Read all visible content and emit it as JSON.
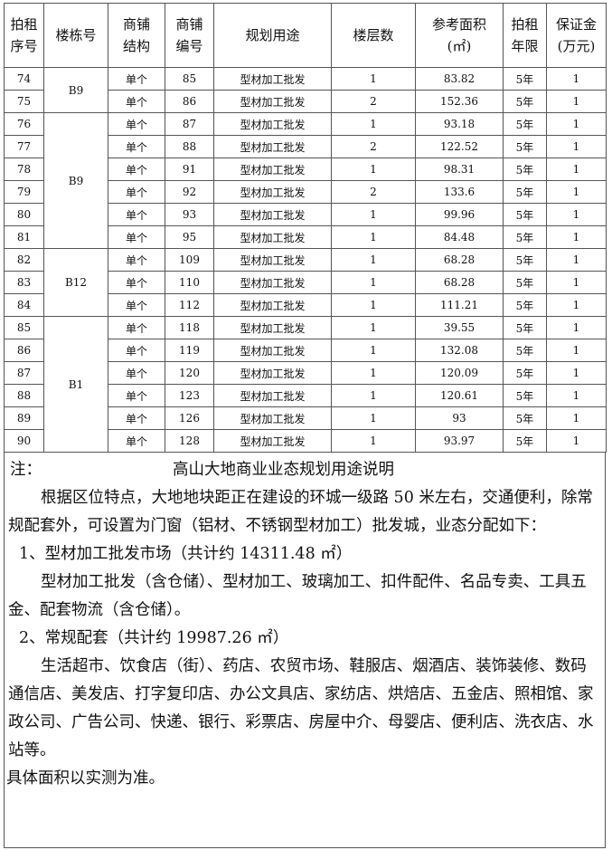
{
  "table": {
    "headers": [
      "拍租\n序号",
      "楼栋号",
      "商铺\n结构",
      "商铺\n编号",
      "规划用途",
      "楼层数",
      "参考面积\n(㎡)",
      "拍租\n年限",
      "保证金\n(万元)"
    ],
    "groups": [
      {
        "building": "B9",
        "rows": [
          {
            "no": "74",
            "structure": "单个",
            "shop": "85",
            "use": "型材加工批发",
            "floors": "1",
            "area": "83.82",
            "term": "5年",
            "deposit": "1"
          },
          {
            "no": "75",
            "structure": "单个",
            "shop": "86",
            "use": "型材加工批发",
            "floors": "2",
            "area": "152.36",
            "term": "5年",
            "deposit": "1"
          }
        ]
      },
      {
        "building": "B9",
        "rows": [
          {
            "no": "76",
            "structure": "单个",
            "shop": "87",
            "use": "型材加工批发",
            "floors": "1",
            "area": "93.18",
            "term": "5年",
            "deposit": "1"
          },
          {
            "no": "77",
            "structure": "单个",
            "shop": "88",
            "use": "型材加工批发",
            "floors": "2",
            "area": "122.52",
            "term": "5年",
            "deposit": "1"
          },
          {
            "no": "78",
            "structure": "单个",
            "shop": "91",
            "use": "型材加工批发",
            "floors": "1",
            "area": "98.31",
            "term": "5年",
            "deposit": "1"
          },
          {
            "no": "79",
            "structure": "单个",
            "shop": "92",
            "use": "型材加工批发",
            "floors": "2",
            "area": "133.6",
            "term": "5年",
            "deposit": "1"
          },
          {
            "no": "80",
            "structure": "单个",
            "shop": "93",
            "use": "型材加工批发",
            "floors": "1",
            "area": "99.96",
            "term": "5年",
            "deposit": "1"
          },
          {
            "no": "81",
            "structure": "单个",
            "shop": "95",
            "use": "型材加工批发",
            "floors": "1",
            "area": "84.48",
            "term": "5年",
            "deposit": "1"
          }
        ]
      },
      {
        "building": "B12",
        "rows": [
          {
            "no": "82",
            "structure": "单个",
            "shop": "109",
            "use": "型材加工批发",
            "floors": "1",
            "area": "68.28",
            "term": "5年",
            "deposit": "1"
          },
          {
            "no": "83",
            "structure": "单个",
            "shop": "110",
            "use": "型材加工批发",
            "floors": "1",
            "area": "68.28",
            "term": "5年",
            "deposit": "1"
          },
          {
            "no": "84",
            "structure": "单个",
            "shop": "112",
            "use": "型材加工批发",
            "floors": "1",
            "area": "111.21",
            "term": "5年",
            "deposit": "1"
          }
        ]
      },
      {
        "building": "B1",
        "rows": [
          {
            "no": "85",
            "structure": "单个",
            "shop": "118",
            "use": "型材加工批发",
            "floors": "1",
            "area": "39.55",
            "term": "5年",
            "deposit": "1"
          },
          {
            "no": "86",
            "structure": "单个",
            "shop": "119",
            "use": "型材加工批发",
            "floors": "1",
            "area": "132.08",
            "term": "5年",
            "deposit": "1"
          },
          {
            "no": "87",
            "structure": "单个",
            "shop": "120",
            "use": "型材加工批发",
            "floors": "1",
            "area": "120.09",
            "term": "5年",
            "deposit": "1"
          },
          {
            "no": "88",
            "structure": "单个",
            "shop": "123",
            "use": "型材加工批发",
            "floors": "1",
            "area": "120.61",
            "term": "5年",
            "deposit": "1"
          },
          {
            "no": "89",
            "structure": "单个",
            "shop": "126",
            "use": "型材加工批发",
            "floors": "1",
            "area": "93",
            "term": "5年",
            "deposit": "1"
          },
          {
            "no": "90",
            "structure": "单个",
            "shop": "128",
            "use": "型材加工批发",
            "floors": "1",
            "area": "93.97",
            "term": "5年",
            "deposit": "1"
          }
        ]
      }
    ]
  },
  "note": {
    "label": "注：",
    "title": "高山大地商业业态规划用途说明",
    "intro": "根据区位特点，大地地块距正在建设的环城一级路 50 米左右，交通便利，除常规配套外，可设置为门窗（铝材、不锈钢型材加工）批发城，业态分配如下：",
    "section1_heading": "1、型材加工批发市场（共计约 14311.48 ㎡）",
    "section1_body": "型材加工批发（含仓储）、型材加工、玻璃加工、扣件配件、名品专卖、工具五金、配套物流（含仓储）。",
    "section2_heading": "2、常规配套（共计约 19987.26 ㎡）",
    "section2_body": "生活超市、饮食店（街）、药店、农贸市场、鞋服店、烟酒店、装饰装修、数码通信店、美发店、打字复印店、办公文具店、家纺店、烘焙店、五金店、照相馆、家政公司、广告公司、快递、银行、彩票店、房屋中介、母婴店、便利店、洗衣店、水站等。",
    "footer": "具体面积以实测为准。"
  }
}
